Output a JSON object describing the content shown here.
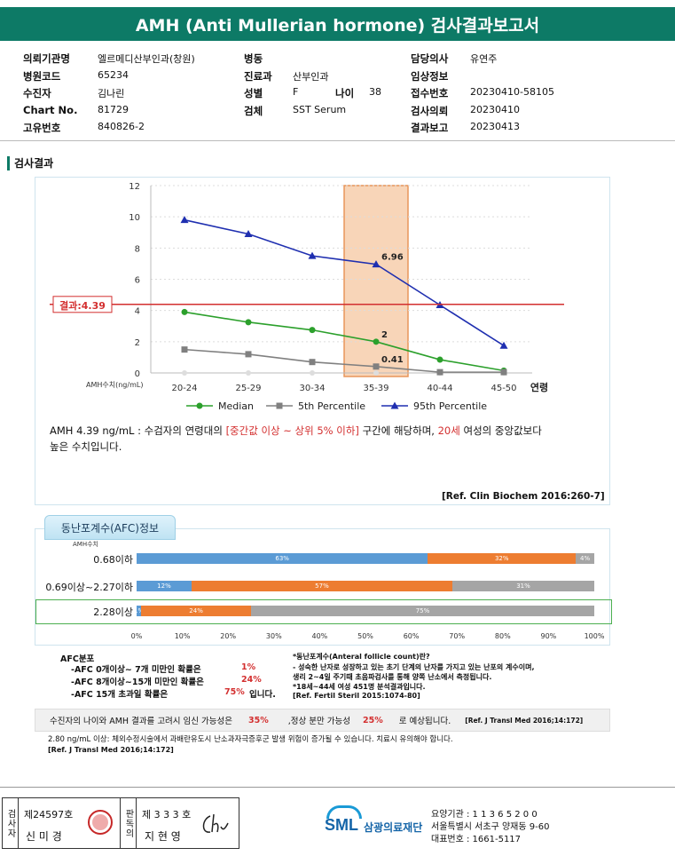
{
  "title": "AMH (Anti Mullerian hormone) 검사결과보고서",
  "patient_info": [
    {
      "key": "의뢰기관명",
      "value": "엘르메디산부인과(창원)"
    },
    {
      "key": "병원코드",
      "value": "65234"
    },
    {
      "key": "수진자",
      "value": "김나린"
    },
    {
      "key": "Chart No.",
      "value": "81729"
    },
    {
      "key": "고유번호",
      "value": "840826-2"
    },
    {
      "key": "병동",
      "value": ""
    },
    {
      "key": "진료과",
      "value": "산부인과"
    },
    {
      "key": "성별",
      "value": "F"
    },
    {
      "key": "나이",
      "value": "38"
    },
    {
      "key": "검체",
      "value": "SST Serum"
    },
    {
      "key": "담당의사",
      "value": "유연주"
    },
    {
      "key": "임상정보",
      "value": ""
    },
    {
      "key": "접수번호",
      "value": "20230410-58105"
    },
    {
      "key": "검사의뢰",
      "value": "20230410"
    },
    {
      "key": "결과보고",
      "value": "20230413"
    }
  ],
  "section_title": "검사결과",
  "chart_data": {
    "type": "line",
    "categories": [
      "20-24",
      "25-29",
      "30-34",
      "35-39",
      "40-44",
      "45-50"
    ],
    "xlabel": "연령",
    "ylabel": "AMH수치(ng/mL)",
    "ylim": [
      0,
      12
    ],
    "yticks": [
      "0",
      "2",
      "4",
      "6",
      "8",
      "10",
      "12"
    ],
    "series": [
      {
        "name": "Median",
        "values": [
          3.9,
          3.25,
          2.75,
          2.0,
          0.85,
          0.15
        ],
        "color": "#2ca02c"
      },
      {
        "name": "5th Percentile",
        "values": [
          1.5,
          1.2,
          0.7,
          0.41,
          0.05,
          0.05
        ],
        "color": "#808080"
      },
      {
        "name": "95th Percentile",
        "values": [
          9.8,
          8.9,
          7.5,
          6.96,
          4.35,
          1.75
        ],
        "color": "#1f2fb0"
      }
    ],
    "annotations": [
      {
        "category": "35-39",
        "value": 6.96,
        "label": "6.96"
      },
      {
        "category": "35-39",
        "value": 2.0,
        "label": "2"
      },
      {
        "category": "35-39",
        "value": 0.41,
        "label": "0.41"
      }
    ],
    "result_line": {
      "value": 4.39,
      "label": "결과:4.39",
      "color": "#d32f2f"
    },
    "highlight_category": "35-39",
    "grid": true,
    "legend_position": "bottom"
  },
  "interpretation": {
    "p1": "AMH  4.39 ng/mL : 수검자의 연령대의 ",
    "p2": "[중간값 이상 ~ 상위 5% 이하]",
    "p3": "  구간에 해당하며, ",
    "p4": "20세",
    "p5": " 여성의 중앙값보다",
    "line2": "높은 수치입니다.",
    "ref": "[Ref. Clin Biochem 2016:260-7]"
  },
  "afc": {
    "tab": "동난포계수(AFC)정보",
    "header": "AMH수치",
    "rows": [
      {
        "label": "0.68이하",
        "segments": [
          {
            "value": 63,
            "label": "63%",
            "color": "blue"
          },
          {
            "value": 32,
            "label": "32%",
            "color": "orange"
          },
          {
            "value": 4,
            "label": "4%",
            "color": "gray"
          }
        ]
      },
      {
        "label": "0.69이상~2.27이하",
        "segments": [
          {
            "value": 12,
            "label": "12%",
            "color": "blue"
          },
          {
            "value": 57,
            "label": "57%",
            "color": "orange"
          },
          {
            "value": 31,
            "label": "31%",
            "color": "gray"
          }
        ]
      },
      {
        "label": "2.28이상",
        "segments": [
          {
            "value": 1,
            "label": "1%",
            "color": "blue"
          },
          {
            "value": 24,
            "label": "24%",
            "color": "orange"
          },
          {
            "value": 75,
            "label": "75%",
            "color": "gray"
          }
        ]
      }
    ],
    "highlight_row": 2,
    "ticks": [
      "0%",
      "10%",
      "20%",
      "30%",
      "40%",
      "50%",
      "60%",
      "70%",
      "80%",
      "90%",
      "100%"
    ],
    "dist_title": "AFC분포",
    "dist": [
      {
        "text": "-AFC  0개이상~ 7개 미만인 확률은",
        "value": "1%",
        "suffix": ""
      },
      {
        "text": "-AFC  8개이상~15개 미만인 확률은",
        "value": "24%",
        "suffix": ""
      },
      {
        "text": "-AFC  15개 초과일 확률은",
        "value": "75%",
        "suffix": "입니다."
      }
    ],
    "note_title": "*동난포계수(Anteral follicle count)란?",
    "note_l1": " - 성숙한 난자로 성장하고 있는 초기 단계의 난자를 가지고 있는 난포의 계수이며,",
    "note_l2": "   생리 2~4일 주기때 초음파검사를 통해 양쪽 난소에서 측정됩니다.",
    "note_l3": "*18세~44세 여성 451명 분석결과입니다.",
    "note_ref": "[Ref. Fertil Steril 2015:1074-80]"
  },
  "summary": {
    "t1": "수진자의 나이와 AMH 결과를 고려시 임신 가능성은",
    "v1": "35%",
    "t2": ",정상 분만 가능성",
    "v2": "25%",
    "t3": "로 예상됩니다.",
    "ref": "[Ref. J Transl Med 2016;14:172]"
  },
  "warning": {
    "text": "2.80  ng/mL  이상: 체외수정시술에서 과배란유도시 난소과자극증후군 발생 위험이 증가될 수 있습니다. 치료시 유의해야 합니다.",
    "ref": "[Ref. J Transl Med 2016;14:172]"
  },
  "footer": {
    "examiner_label": "검사자",
    "examiner_no": "제24597호",
    "examiner_name": "신 미 경",
    "reviewer_label": "판독의",
    "reviewer_no": "제 3 3 3 호",
    "reviewer_name": "지 현 영",
    "stamp_text": "신미경",
    "logo": "SML",
    "org": "삼광의료재단",
    "inst_code": "요양기관 : 1 1 3 6 5 2 0 0",
    "address": "서울특별시 서초구 양재동 9-60",
    "phone": "대표번호 : 1661-5117"
  }
}
